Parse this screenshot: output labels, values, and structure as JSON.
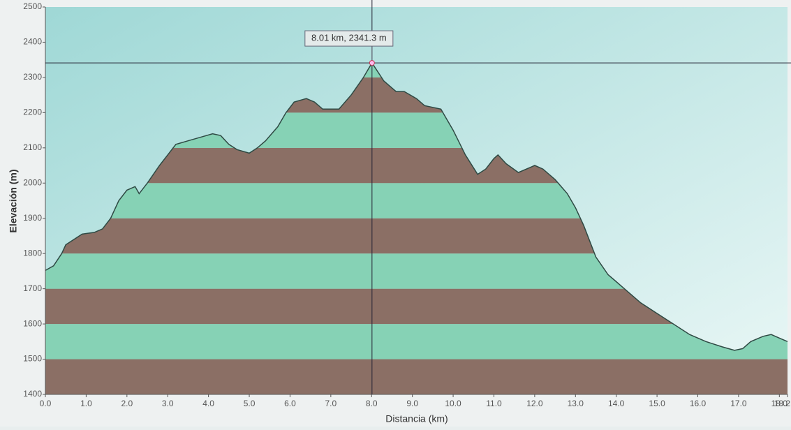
{
  "chart_data": {
    "type": "elevation-profile",
    "x_label": "Distancia   (km)",
    "y_label": "Elevación (m)",
    "x": [
      0.0,
      0.2,
      0.4,
      0.5,
      0.7,
      0.9,
      1.2,
      1.4,
      1.6,
      1.8,
      2.0,
      2.2,
      2.3,
      2.5,
      2.8,
      3.0,
      3.2,
      3.5,
      3.8,
      4.1,
      4.3,
      4.5,
      4.7,
      5.0,
      5.2,
      5.4,
      5.7,
      5.9,
      6.1,
      6.4,
      6.6,
      6.8,
      7.2,
      7.5,
      7.8,
      8.01,
      8.3,
      8.6,
      8.8,
      9.1,
      9.3,
      9.7,
      10.0,
      10.3,
      10.6,
      10.8,
      11.0,
      11.1,
      11.3,
      11.6,
      11.8,
      12.0,
      12.2,
      12.5,
      12.8,
      13.0,
      13.2,
      13.5,
      13.8,
      14.0,
      14.3,
      14.6,
      15.0,
      15.4,
      15.8,
      16.2,
      16.6,
      16.9,
      17.1,
      17.3,
      17.6,
      17.8,
      18.0,
      18.2
    ],
    "values": [
      1752,
      1765,
      1800,
      1825,
      1840,
      1855,
      1860,
      1870,
      1900,
      1950,
      1980,
      1990,
      1970,
      2000,
      2050,
      2080,
      2110,
      2120,
      2130,
      2140,
      2135,
      2110,
      2095,
      2085,
      2100,
      2120,
      2160,
      2200,
      2230,
      2240,
      2230,
      2210,
      2210,
      2250,
      2300,
      2341.3,
      2290,
      2260,
      2260,
      2240,
      2220,
      2210,
      2150,
      2080,
      2025,
      2040,
      2070,
      2080,
      2055,
      2030,
      2040,
      2050,
      2040,
      2010,
      1970,
      1930,
      1880,
      1790,
      1740,
      1720,
      1690,
      1660,
      1630,
      1600,
      1570,
      1550,
      1535,
      1525,
      1530,
      1550,
      1565,
      1570,
      1560,
      1550
    ],
    "xlim": [
      0,
      18.2
    ],
    "ylim": [
      1400,
      2500
    ],
    "xticks": [
      {
        "value": 0,
        "label": "0.0"
      },
      {
        "value": 1,
        "label": "1.0"
      },
      {
        "value": 2,
        "label": "2.0"
      },
      {
        "value": 3,
        "label": "3.0"
      },
      {
        "value": 4,
        "label": "4.0"
      },
      {
        "value": 5,
        "label": "5.0"
      },
      {
        "value": 6,
        "label": "6.0"
      },
      {
        "value": 7,
        "label": "7.0"
      },
      {
        "value": 8,
        "label": "8.0"
      },
      {
        "value": 9,
        "label": "9.0"
      },
      {
        "value": 10,
        "label": "10.0"
      },
      {
        "value": 11,
        "label": "11.0"
      },
      {
        "value": 12,
        "label": "12.0"
      },
      {
        "value": 13,
        "label": "13.0"
      },
      {
        "value": 14,
        "label": "14.0"
      },
      {
        "value": 15,
        "label": "15.0"
      },
      {
        "value": 16,
        "label": "16.0"
      },
      {
        "value": 17,
        "label": "17.0"
      },
      {
        "value": 18,
        "label": "18.0"
      },
      {
        "value": 18.2,
        "label": "18.2"
      }
    ],
    "yticks": [
      1400,
      1500,
      1600,
      1700,
      1800,
      1900,
      2000,
      2100,
      2200,
      2300,
      2400,
      2500
    ],
    "band_colors": [
      "#8b6f65",
      "#86d2b5"
    ],
    "line_color": "#2f4a44",
    "crosshair": {
      "x": 8.01,
      "y": 2341.3,
      "label": "8.01 km, 2341.3 m"
    }
  }
}
